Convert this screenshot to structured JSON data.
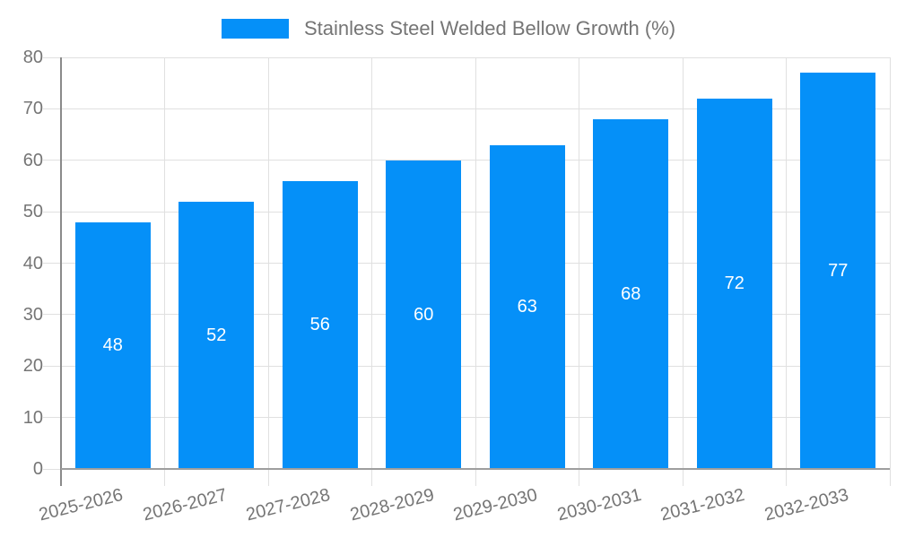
{
  "legend": {
    "label": "Stainless Steel Welded Bellow Growth (%)",
    "swatch_color": "#0590f8"
  },
  "chart_data": {
    "type": "bar",
    "title": "",
    "series_name": "Stainless Steel Welded Bellow Growth (%)",
    "categories": [
      "2025-2026",
      "2026-2027",
      "2027-2028",
      "2028-2029",
      "2029-2030",
      "2030-2031",
      "2031-2032",
      "2032-2033"
    ],
    "values": [
      48,
      52,
      56,
      60,
      63,
      68,
      72,
      77
    ],
    "ylim": [
      0,
      80
    ],
    "ytick_step": 10,
    "ytick_labels": [
      "0",
      "10",
      "20",
      "30",
      "40",
      "50",
      "60",
      "70",
      "80"
    ],
    "grid": true,
    "legend_position": "top",
    "x_label_rotation_deg": -14,
    "bar_color": "#0590f8",
    "bar_label_color": "#ffffff",
    "axis_label_color": "#757575",
    "grid_color": "#e0e0e0",
    "y_axis_line_color": "#8a8a8a",
    "x_axis_line_color": "#9e9e9e"
  }
}
